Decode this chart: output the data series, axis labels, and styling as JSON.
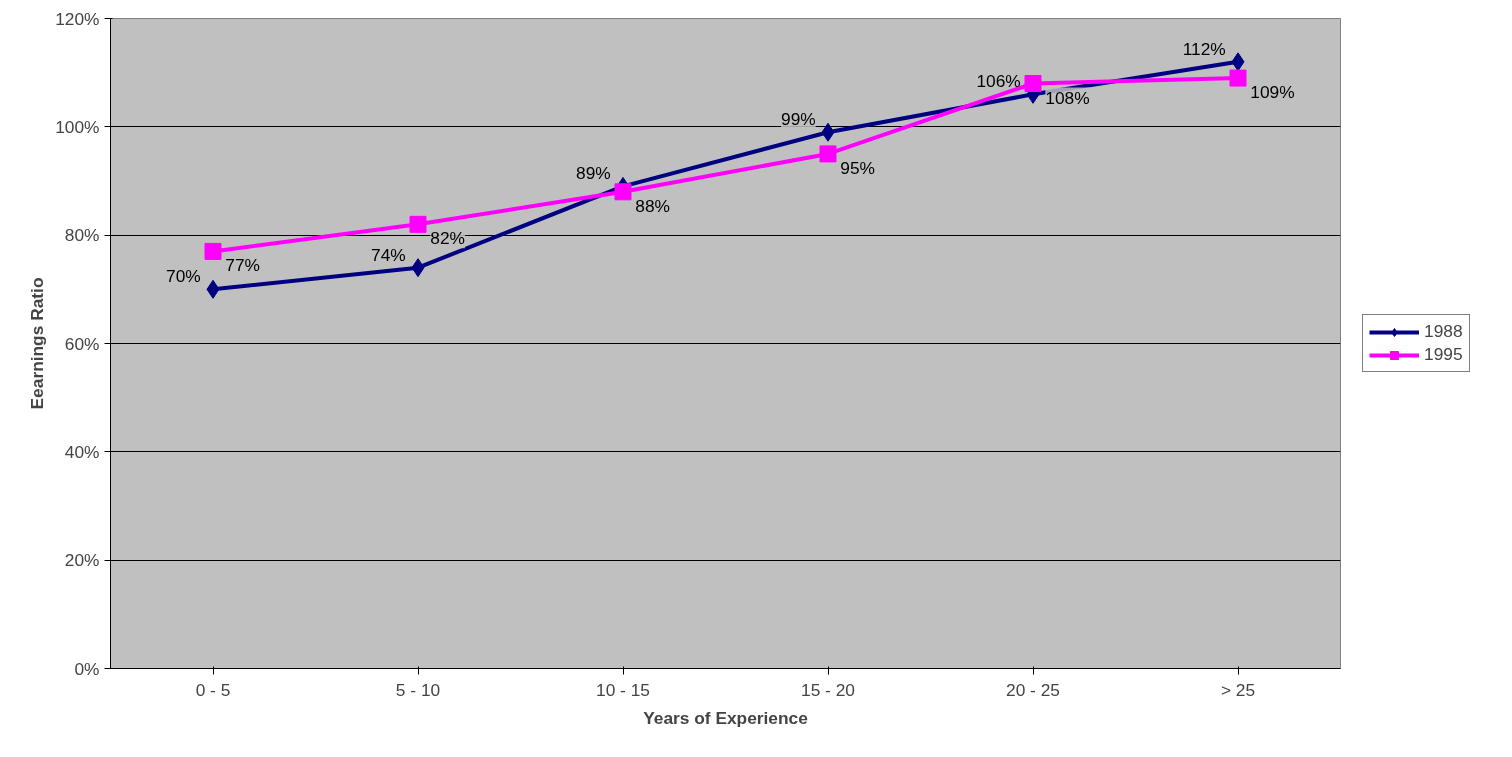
{
  "chart_data": {
    "type": "line",
    "xlabel": "Years of Experience",
    "ylabel": "Eearnings Ratio",
    "categories": [
      "0 - 5",
      "5 - 10",
      "10 - 15",
      "15 - 20",
      "20 - 25",
      "> 25"
    ],
    "series": [
      {
        "name": "1988",
        "color": "#000080",
        "marker": "diamond",
        "values": [
          70,
          74,
          89,
          99,
          106,
          112
        ],
        "value_labels": [
          "70%",
          "74%",
          "89%",
          "99%",
          "106%",
          "112%"
        ]
      },
      {
        "name": "1995",
        "color": "#ff00ff",
        "marker": "square",
        "values": [
          77,
          82,
          88,
          95,
          108,
          109
        ],
        "value_labels": [
          "77%",
          "82%",
          "88%",
          "95%",
          "108%",
          "109%"
        ]
      }
    ],
    "ylim": [
      0,
      120
    ],
    "yticks": [
      {
        "value": 0,
        "label": "0%"
      },
      {
        "value": 20,
        "label": "20%"
      },
      {
        "value": 40,
        "label": "40%"
      },
      {
        "value": 60,
        "label": "60%"
      },
      {
        "value": 80,
        "label": "80%"
      },
      {
        "value": 100,
        "label": "100%"
      },
      {
        "value": 120,
        "label": "120%"
      }
    ],
    "grid": "y",
    "legend": "right",
    "line_style": "solid"
  }
}
